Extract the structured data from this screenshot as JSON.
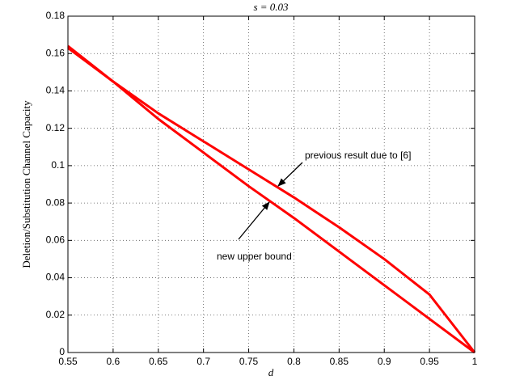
{
  "chart_data": {
    "type": "line",
    "title": "s = 0.03",
    "xlabel": "d",
    "ylabel": "Deletion/Substitution Channel Capacity",
    "x": [
      0.55,
      0.6,
      0.65,
      0.7,
      0.75,
      0.8,
      0.85,
      0.9,
      0.95,
      1
    ],
    "series": [
      {
        "color": "#ff0000",
        "values": [
          0.163,
          0.145,
          0.128,
          0.113,
          0.098,
          0.083,
          0.067,
          0.05,
          0.031,
          0
        ]
      },
      {
        "color": "#ff0000",
        "values": [
          0.164,
          0.145,
          0.125,
          0.107,
          0.089,
          0.072,
          0.054,
          0.036,
          0.018,
          0
        ]
      }
    ],
    "xlim": [
      0.55,
      1
    ],
    "ylim": [
      0,
      0.18
    ],
    "xticks": [
      0.55,
      0.6,
      0.65,
      0.7,
      0.75,
      0.8,
      0.85,
      0.9,
      0.95,
      1
    ],
    "yticks": [
      0,
      0.02,
      0.04,
      0.06,
      0.08,
      0.1,
      0.12,
      0.14,
      0.16,
      0.18
    ],
    "grid": true,
    "annotations": [
      "previous result due to [6]",
      "new upper bound"
    ]
  }
}
